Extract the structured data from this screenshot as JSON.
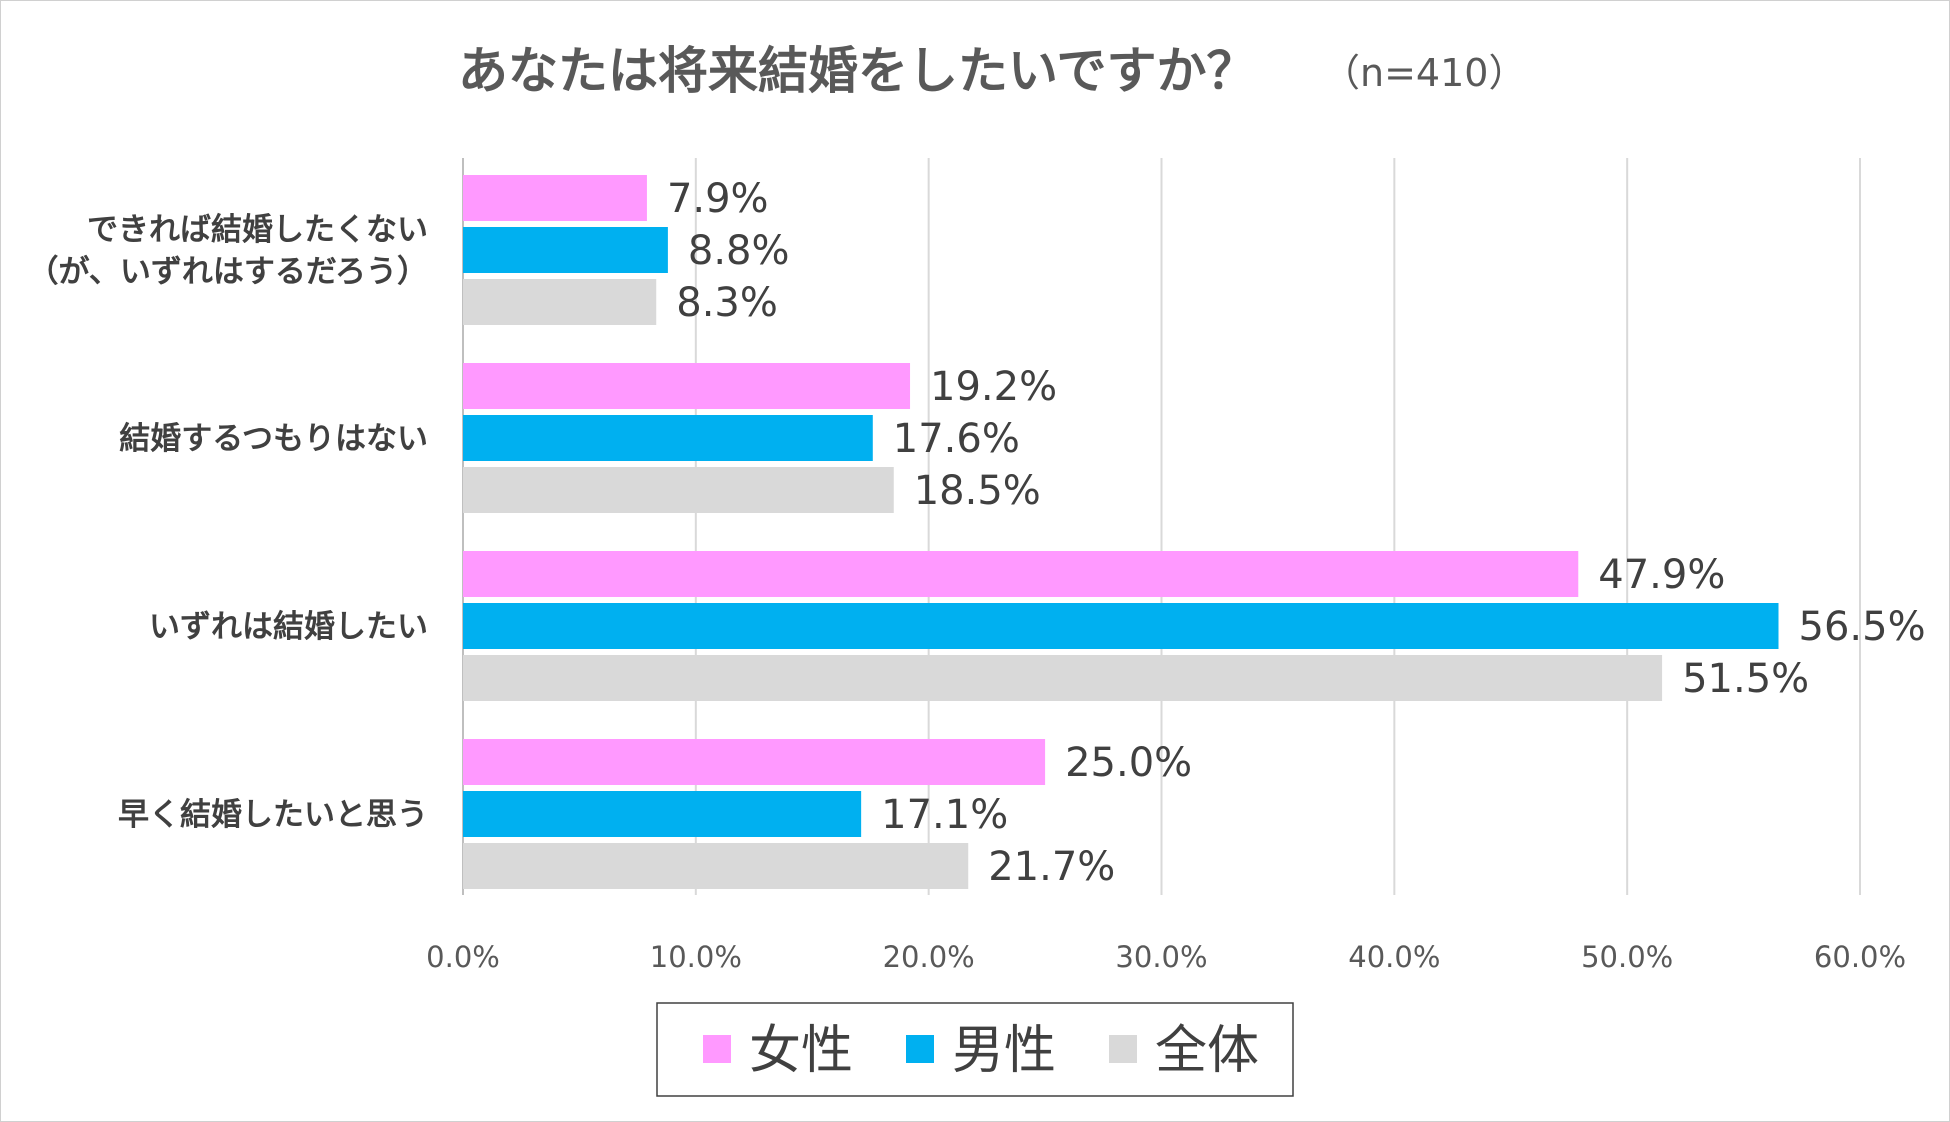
{
  "chart_data": {
    "type": "bar",
    "orientation": "horizontal",
    "title": "あなたは将来結婚をしたいですか？",
    "subtitle": "（n=410）",
    "categories": [
      [
        "できれば結婚したくない",
        "（が、いずれはするだろう）"
      ],
      [
        "結婚するつもりはない"
      ],
      [
        "いずれは結婚したい"
      ],
      [
        "早く結婚したいと思う"
      ]
    ],
    "series": [
      {
        "name": "女性",
        "color": "#FF99FF",
        "values": [
          7.9,
          19.2,
          47.9,
          25.0
        ],
        "labels": [
          "7.9%",
          "19.2%",
          "47.9%",
          "25.0%"
        ]
      },
      {
        "name": "男性",
        "color": "#00B0F0",
        "values": [
          8.8,
          17.6,
          56.5,
          17.1
        ],
        "labels": [
          "8.8%",
          "17.6%",
          "56.5%",
          "17.1%"
        ]
      },
      {
        "name": "全体",
        "color": "#D9D9D9",
        "values": [
          8.3,
          18.5,
          51.5,
          21.7
        ],
        "labels": [
          "8.3%",
          "18.5%",
          "51.5%",
          "21.7%"
        ]
      }
    ],
    "xlim": [
      0,
      60
    ],
    "xticks": [
      0,
      10,
      20,
      30,
      40,
      50,
      60
    ],
    "xtick_labels": [
      "0.0%",
      "10.0%",
      "20.0%",
      "30.0%",
      "40.0%",
      "50.0%",
      "60.0%"
    ],
    "grid": "vertical",
    "legend": "bottom-center",
    "gridline_color": "#D9D9D9"
  }
}
